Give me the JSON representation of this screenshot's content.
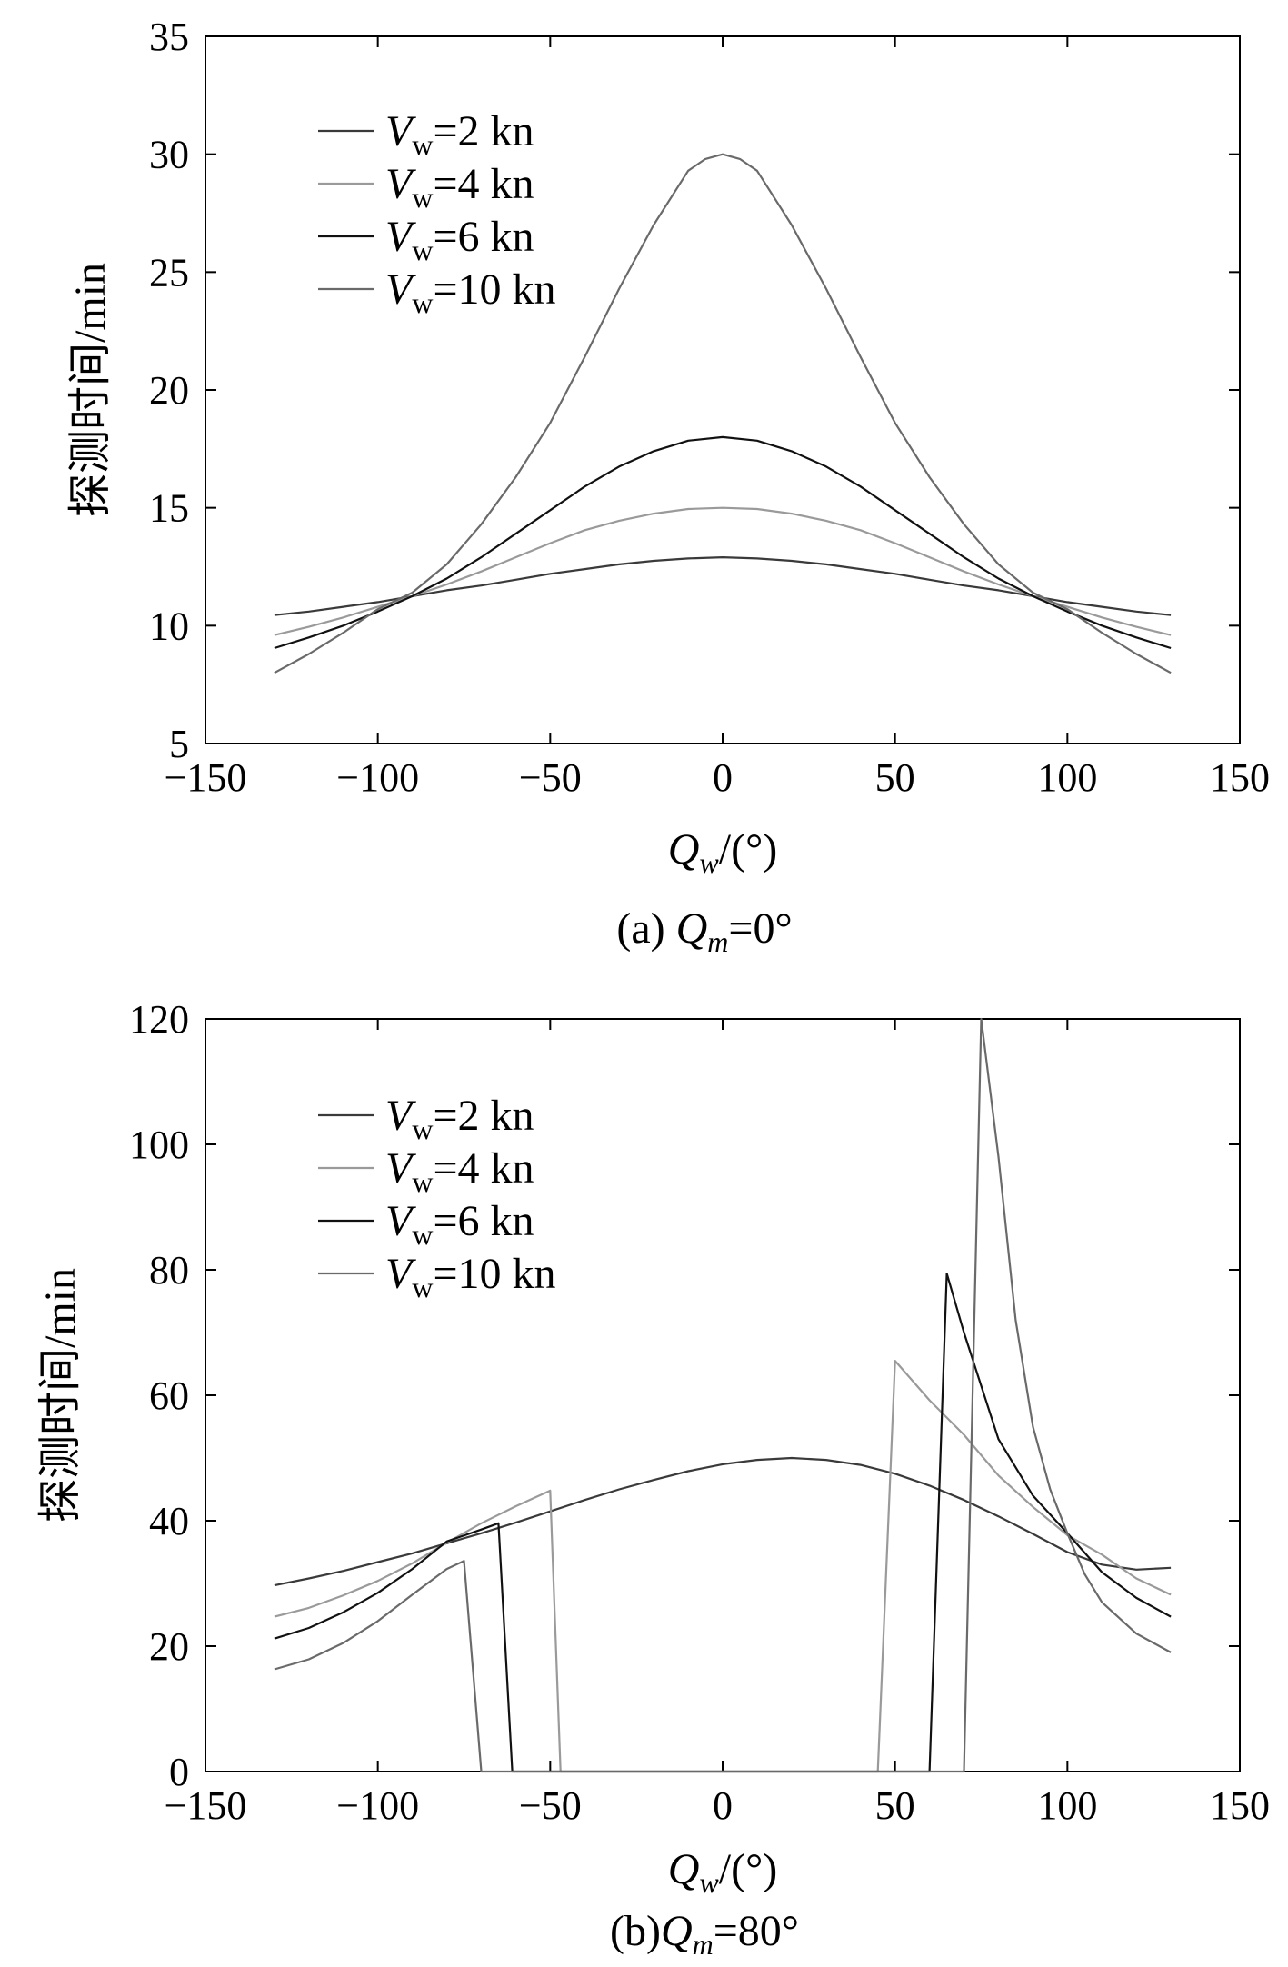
{
  "chart_data": [
    {
      "type": "line",
      "id": "a",
      "caption_prefix": "(a) ",
      "caption_var": "Q",
      "caption_sub": "m",
      "caption_suffix": "=0°",
      "ylabel": "探测时间/min",
      "xlabel_var": "Q",
      "xlabel_sub": "w",
      "xlabel_suffix": "/(°)",
      "xlim": [
        -150,
        150
      ],
      "ylim": [
        5,
        35
      ],
      "xticks": [
        -150,
        -100,
        -50,
        0,
        50,
        100,
        150
      ],
      "yticks": [
        5,
        10,
        15,
        20,
        25,
        30,
        35
      ],
      "tick_labels_x": [
        "−150",
        "−100",
        "−50",
        "0",
        "50",
        "100",
        "150"
      ],
      "tick_labels_y": [
        "5",
        "10",
        "15",
        "20",
        "25",
        "30",
        "35"
      ],
      "legend_location": "top-left",
      "series": [
        {
          "name": "V_w=2 kn",
          "legend_var": "V",
          "legend_sub": "w",
          "legend_text": "=2 kn",
          "color": "#3a3a3a",
          "x": [
            -130,
            -120,
            -110,
            -100,
            -90,
            -80,
            -70,
            -60,
            -50,
            -40,
            -30,
            -20,
            -10,
            0,
            10,
            20,
            30,
            40,
            50,
            60,
            70,
            80,
            90,
            100,
            110,
            120,
            130
          ],
          "y": [
            10.45,
            10.6,
            10.8,
            11.0,
            11.25,
            11.5,
            11.7,
            11.95,
            12.2,
            12.4,
            12.6,
            12.75,
            12.85,
            12.9,
            12.85,
            12.75,
            12.6,
            12.4,
            12.2,
            11.95,
            11.7,
            11.5,
            11.25,
            11.0,
            10.8,
            10.6,
            10.45
          ]
        },
        {
          "name": "V_w=4 kn",
          "legend_var": "V",
          "legend_sub": "w",
          "legend_text": "=4 kn",
          "color": "#9a9a9a",
          "x": [
            -130,
            -120,
            -110,
            -100,
            -90,
            -80,
            -70,
            -60,
            -50,
            -40,
            -30,
            -20,
            -10,
            0,
            10,
            20,
            30,
            40,
            50,
            60,
            70,
            80,
            90,
            100,
            110,
            120,
            130
          ],
          "y": [
            9.6,
            9.95,
            10.35,
            10.8,
            11.25,
            11.75,
            12.3,
            12.9,
            13.5,
            14.05,
            14.45,
            14.75,
            14.95,
            15.0,
            14.95,
            14.75,
            14.45,
            14.05,
            13.5,
            12.9,
            12.3,
            11.75,
            11.25,
            10.8,
            10.35,
            9.95,
            9.6
          ]
        },
        {
          "name": "V_w=6 kn",
          "legend_var": "V",
          "legend_sub": "w",
          "legend_text": "=6 kn",
          "color": "#111111",
          "x": [
            -130,
            -120,
            -110,
            -100,
            -90,
            -80,
            -70,
            -60,
            -50,
            -40,
            -30,
            -20,
            -10,
            0,
            10,
            20,
            30,
            40,
            50,
            60,
            70,
            80,
            90,
            100,
            110,
            120,
            130
          ],
          "y": [
            9.05,
            9.5,
            10.0,
            10.6,
            11.25,
            12.0,
            12.9,
            13.9,
            14.9,
            15.9,
            16.75,
            17.4,
            17.85,
            18.0,
            17.85,
            17.4,
            16.75,
            15.9,
            14.9,
            13.9,
            12.9,
            12.0,
            11.25,
            10.6,
            10.0,
            9.5,
            9.05
          ]
        },
        {
          "name": "V_w=10 kn",
          "legend_var": "V",
          "legend_sub": "w",
          "legend_text": "=10 kn",
          "color": "#6a6a6a",
          "x": [
            -130,
            -120,
            -110,
            -100,
            -90,
            -80,
            -70,
            -60,
            -50,
            -40,
            -30,
            -20,
            -10,
            -5,
            0,
            5,
            10,
            20,
            30,
            40,
            50,
            60,
            70,
            80,
            90,
            100,
            110,
            120,
            130
          ],
          "y": [
            8.0,
            8.8,
            9.7,
            10.7,
            11.4,
            12.6,
            14.3,
            16.3,
            18.6,
            21.4,
            24.3,
            27.0,
            29.3,
            29.8,
            30.0,
            29.8,
            29.3,
            27.0,
            24.3,
            21.4,
            18.6,
            16.3,
            14.3,
            12.6,
            11.4,
            10.7,
            9.7,
            8.8,
            8.0
          ]
        }
      ]
    },
    {
      "type": "line",
      "id": "b",
      "caption_prefix": "(b)",
      "caption_var": "Q",
      "caption_sub": "m",
      "caption_suffix": "=80°",
      "ylabel": "探测时间/min",
      "xlabel_var": "Q",
      "xlabel_sub": "w",
      "xlabel_suffix": "/(°)",
      "xlim": [
        -150,
        150
      ],
      "ylim": [
        0,
        120
      ],
      "xticks": [
        -150,
        -100,
        -50,
        0,
        50,
        100,
        150
      ],
      "yticks": [
        0,
        20,
        40,
        60,
        80,
        100,
        120
      ],
      "tick_labels_x": [
        "−150",
        "−100",
        "−50",
        "0",
        "50",
        "100",
        "150"
      ],
      "tick_labels_y": [
        "0",
        "20",
        "40",
        "60",
        "80",
        "100",
        "120"
      ],
      "legend_location": "top-left",
      "series": [
        {
          "name": "V_w=2 kn",
          "legend_var": "V",
          "legend_sub": "w",
          "legend_text": "=2 kn",
          "color": "#3a3a3a",
          "x": [
            -130,
            -120,
            -110,
            -100,
            -90,
            -80,
            -70,
            -60,
            -50,
            -40,
            -30,
            -20,
            -10,
            0,
            10,
            20,
            30,
            40,
            50,
            60,
            70,
            80,
            90,
            100,
            110,
            120,
            130
          ],
          "y": [
            29.7,
            30.8,
            32.0,
            33.4,
            34.8,
            36.4,
            38.0,
            39.7,
            41.5,
            43.3,
            45.0,
            46.5,
            47.9,
            49.0,
            49.7,
            50.0,
            49.7,
            48.9,
            47.5,
            45.6,
            43.3,
            40.7,
            37.9,
            35.0,
            33.0,
            32.2,
            32.5
          ]
        },
        {
          "name": "V_w=4 kn",
          "legend_var": "V",
          "legend_sub": "w",
          "legend_text": "=4 kn",
          "color": "#9a9a9a",
          "x": [
            -130,
            -120,
            -110,
            -100,
            -90,
            -80,
            -70,
            -60,
            -50,
            -47,
            45,
            50,
            60,
            70,
            80,
            90,
            100,
            110,
            120,
            130
          ],
          "y": [
            24.7,
            26.1,
            28.1,
            30.4,
            33.2,
            36.5,
            39.6,
            42.3,
            44.8,
            0,
            0,
            65.5,
            59.2,
            53.7,
            47.2,
            42.2,
            37.7,
            34.6,
            30.8,
            28.2
          ]
        },
        {
          "name": "V_w=6 kn",
          "legend_var": "V",
          "legend_sub": "w",
          "legend_text": "=6 kn",
          "color": "#111111",
          "x": [
            -130,
            -120,
            -110,
            -100,
            -90,
            -80,
            -70,
            -65,
            -61,
            60,
            65,
            70,
            80,
            90,
            100,
            110,
            120,
            130
          ],
          "y": [
            21.2,
            22.9,
            25.4,
            28.5,
            32.3,
            36.7,
            38.6,
            39.6,
            0,
            0,
            79.4,
            70.0,
            53.0,
            44.0,
            38.0,
            31.8,
            27.7,
            24.7
          ]
        },
        {
          "name": "V_w=10 kn",
          "legend_var": "V",
          "legend_sub": "w",
          "legend_text": "=10 kn",
          "color": "#6a6a6a",
          "x": [
            -130,
            -120,
            -110,
            -100,
            -90,
            -80,
            -75,
            -70,
            70,
            75,
            80,
            85,
            90,
            95,
            100,
            105,
            110,
            120,
            130
          ],
          "y": [
            16.3,
            17.9,
            20.5,
            24.0,
            28.2,
            32.3,
            33.6,
            0,
            0,
            120.0,
            98.0,
            72.0,
            55.0,
            45.0,
            38.0,
            31.5,
            27.0,
            22.0,
            19.0
          ]
        }
      ]
    }
  ]
}
